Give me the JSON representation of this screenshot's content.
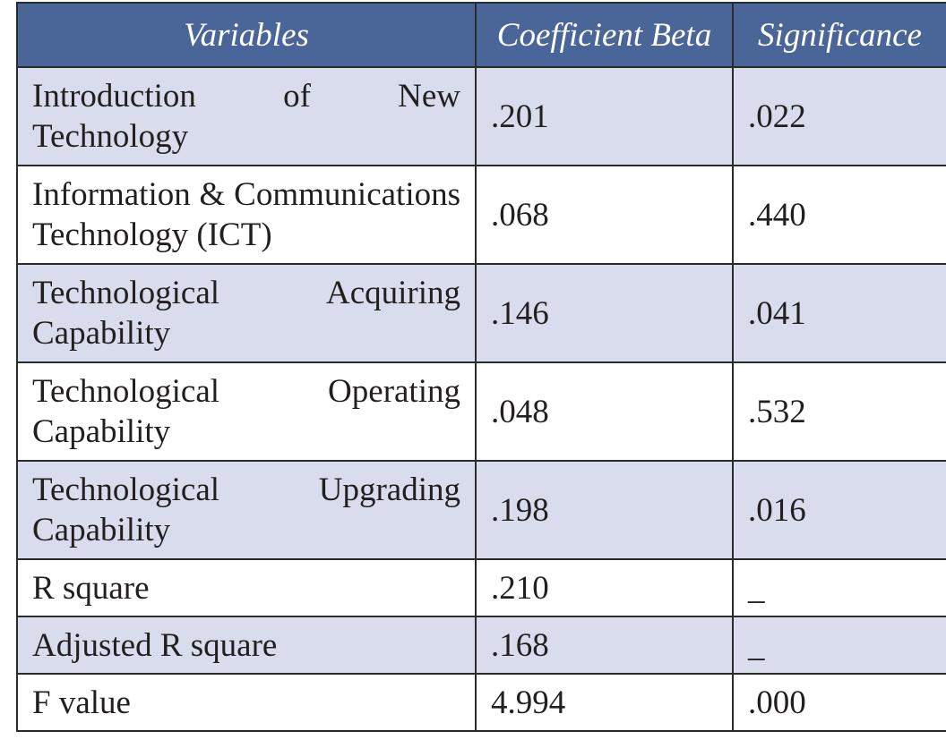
{
  "table": {
    "header": [
      "Variables",
      "Coefficient Beta",
      "Significance"
    ],
    "rows": [
      [
        "Introduction of New Technology",
        ".201",
        ".022"
      ],
      [
        "Information & Communications Technology (ICT)",
        ".068",
        ".440"
      ],
      [
        "Technological Acquiring Capability",
        ".146",
        ".041"
      ],
      [
        "Technological Operating Capability",
        ".048",
        ".532"
      ],
      [
        "Technological Upgrading Capability",
        ".198",
        ".016"
      ],
      [
        "R square",
        ".210",
        "_"
      ],
      [
        "Adjusted R square",
        ".168",
        "_"
      ],
      [
        "F value",
        "4.994",
        ".000"
      ]
    ]
  }
}
